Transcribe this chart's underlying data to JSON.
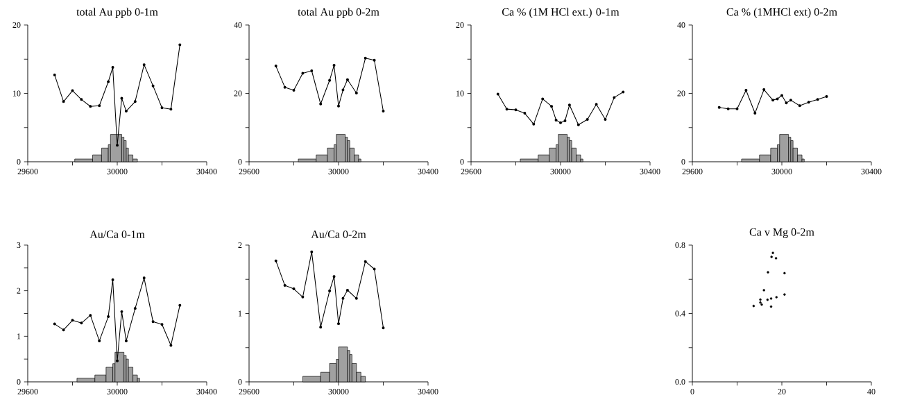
{
  "chart_data": [
    {
      "type": "line",
      "title": "total Au ppb 0-1m",
      "xlim": [
        29600,
        30400
      ],
      "xticks": [
        29600,
        {
          "value": 29800,
          "label": null
        },
        30000,
        {
          "value": 30200,
          "label": null
        },
        30400
      ],
      "ylim": [
        0,
        20
      ],
      "yticks": [
        0,
        {
          "value": 5,
          "label": null
        },
        10,
        {
          "value": 15,
          "label": null
        },
        20
      ],
      "marker": "circle",
      "series": [
        {
          "type": "histogram",
          "color": "#a0a0a0",
          "bins": [
            29810,
            29890,
            29930,
            29960,
            29970,
            30020,
            30030,
            30040,
            30050,
            30070,
            30090
          ],
          "values": [
            0.4,
            1,
            2,
            2.5,
            4,
            3.6,
            3.1,
            2,
            1,
            0.4
          ]
        },
        {
          "type": "line",
          "color": "#000000",
          "x": [
            29720,
            29760,
            29800,
            29840,
            29880,
            29920,
            29960,
            29980,
            30000,
            30020,
            30040,
            30080,
            30120,
            30160,
            30200,
            30240,
            30280
          ],
          "values": [
            12.7,
            8.8,
            10.4,
            9.1,
            8.1,
            8.2,
            11.7,
            13.8,
            2.4,
            9.3,
            7.4,
            8.8,
            14.2,
            11.1,
            7.9,
            7.7,
            17.1
          ]
        }
      ]
    },
    {
      "type": "line",
      "title": "total Au ppb 0-2m",
      "xlim": [
        29600,
        30400
      ],
      "xticks": [
        29600,
        {
          "value": 29800,
          "label": null
        },
        30000,
        {
          "value": 30200,
          "label": null
        },
        30400
      ],
      "ylim": [
        0,
        40
      ],
      "yticks": [
        0,
        {
          "value": 10,
          "label": null
        },
        20,
        {
          "value": 30,
          "label": null
        },
        40
      ],
      "marker": "circle",
      "series": [
        {
          "type": "histogram",
          "color": "#a0a0a0",
          "bins": [
            29820,
            29900,
            29950,
            29980,
            29990,
            30030,
            30040,
            30050,
            30070,
            30090,
            30100
          ],
          "values": [
            0.8,
            2,
            4,
            5,
            8,
            7.2,
            6.2,
            4,
            2,
            0.8
          ]
        },
        {
          "type": "line",
          "color": "#000000",
          "x": [
            29720,
            29760,
            29800,
            29840,
            29880,
            29920,
            29960,
            29980,
            30000,
            30020,
            30040,
            30080,
            30120,
            30160,
            30200
          ],
          "values": [
            28.0,
            21.8,
            20.9,
            25.9,
            26.6,
            16.9,
            23.8,
            28.2,
            16.3,
            21.0,
            24.0,
            20.1,
            30.3,
            29.7,
            14.8
          ]
        }
      ]
    },
    {
      "type": "line",
      "title": "Ca % (1M HCl ext.) 0-1m",
      "xlim": [
        29600,
        30400
      ],
      "xticks": [
        29600,
        {
          "value": 29800,
          "label": null
        },
        30000,
        {
          "value": 30200,
          "label": null
        },
        30400
      ],
      "ylim": [
        0,
        20
      ],
      "yticks": [
        0,
        {
          "value": 5,
          "label": null
        },
        10,
        {
          "value": 15,
          "label": null
        },
        20
      ],
      "marker": "circle",
      "series": [
        {
          "type": "histogram",
          "color": "#a0a0a0",
          "bins": [
            29820,
            29900,
            29950,
            29980,
            29990,
            30030,
            30040,
            30050,
            30070,
            30090,
            30100
          ],
          "values": [
            0.4,
            1,
            2,
            2.5,
            4,
            3.6,
            3.1,
            2,
            1,
            0.4
          ]
        },
        {
          "type": "line",
          "color": "#000000",
          "x": [
            29720,
            29760,
            29800,
            29840,
            29880,
            29920,
            29960,
            29980,
            30000,
            30020,
            30040,
            30080,
            30120,
            30160,
            30200,
            30240,
            30280
          ],
          "values": [
            9.9,
            7.7,
            7.6,
            7.1,
            5.5,
            9.2,
            8.1,
            6.1,
            5.7,
            6.0,
            8.3,
            5.4,
            6.2,
            8.4,
            6.2,
            9.4,
            10.2
          ]
        }
      ]
    },
    {
      "type": "line",
      "title": "Ca % (1MHCl ext) 0-2m",
      "xlim": [
        29600,
        30400
      ],
      "xticks": [
        29600,
        {
          "value": 29800,
          "label": null
        },
        30000,
        {
          "value": 30200,
          "label": null
        },
        30400
      ],
      "ylim": [
        0,
        40
      ],
      "yticks": [
        0,
        {
          "value": 10,
          "label": null
        },
        20,
        {
          "value": 30,
          "label": null
        },
        40
      ],
      "marker": "circle",
      "series": [
        {
          "type": "histogram",
          "color": "#a0a0a0",
          "bins": [
            29820,
            29900,
            29950,
            29980,
            29990,
            30030,
            30040,
            30050,
            30070,
            30090,
            30100
          ],
          "values": [
            0.8,
            2,
            4,
            5,
            8,
            7.2,
            6.2,
            4,
            2,
            0.8
          ]
        },
        {
          "type": "line",
          "color": "#000000",
          "x": [
            29720,
            29760,
            29800,
            29840,
            29880,
            29920,
            29960,
            29980,
            30000,
            30020,
            30040,
            30080,
            30120,
            30160,
            30200
          ],
          "values": [
            15.9,
            15.5,
            15.5,
            20.9,
            14.2,
            21.1,
            18.0,
            18.4,
            19.4,
            17.2,
            18.0,
            16.4,
            17.4,
            18.2,
            19.1
          ]
        }
      ]
    },
    {
      "type": "line",
      "title": "Au/Ca 0-1m",
      "xlim": [
        29600,
        30400
      ],
      "xticks": [
        29600,
        {
          "value": 29800,
          "label": null
        },
        30000,
        {
          "value": 30200,
          "label": null
        },
        30400
      ],
      "ylim": [
        0,
        3
      ],
      "yticks": [
        0,
        {
          "value": 0.5,
          "label": null
        },
        1,
        {
          "value": 1.5,
          "label": null
        },
        2,
        {
          "value": 2.5,
          "label": null
        },
        3
      ],
      "marker": "circle",
      "series": [
        {
          "type": "histogram",
          "color": "#a0a0a0",
          "bins": [
            29820,
            29900,
            29950,
            29980,
            29990,
            30030,
            30040,
            30050,
            30070,
            30090,
            30100
          ],
          "values": [
            0.08,
            0.15,
            0.32,
            0.4,
            0.65,
            0.58,
            0.5,
            0.32,
            0.15,
            0.08
          ]
        },
        {
          "type": "line",
          "color": "#000000",
          "x": [
            29720,
            29760,
            29800,
            29840,
            29880,
            29920,
            29960,
            29980,
            30000,
            30020,
            30040,
            30080,
            30120,
            30160,
            30200,
            30240,
            30280
          ],
          "values": [
            1.27,
            1.14,
            1.35,
            1.29,
            1.46,
            0.9,
            1.43,
            2.24,
            0.46,
            1.54,
            0.9,
            1.61,
            2.28,
            1.32,
            1.26,
            0.8,
            1.68
          ]
        }
      ]
    },
    {
      "type": "line",
      "title": "Au/Ca 0-2m",
      "xlim": [
        29600,
        30400
      ],
      "xticks": [
        29600,
        {
          "value": 29800,
          "label": null
        },
        30000,
        {
          "value": 30200,
          "label": null
        },
        30400
      ],
      "ylim": [
        0,
        2
      ],
      "yticks": [
        0,
        {
          "value": 0.5,
          "label": null
        },
        1,
        {
          "value": 1.5,
          "label": null
        },
        2
      ],
      "marker": "circle",
      "series": [
        {
          "type": "histogram",
          "color": "#a0a0a0",
          "bins": [
            29840,
            29920,
            29960,
            29990,
            30000,
            30040,
            30050,
            30060,
            30080,
            30100,
            30120
          ],
          "values": [
            0.08,
            0.14,
            0.27,
            0.33,
            0.51,
            0.46,
            0.4,
            0.27,
            0.14,
            0.08
          ]
        },
        {
          "type": "line",
          "color": "#000000",
          "x": [
            29720,
            29760,
            29800,
            29840,
            29880,
            29920,
            29960,
            29980,
            30000,
            30020,
            30040,
            30080,
            30120,
            30160,
            30200
          ],
          "values": [
            1.77,
            1.41,
            1.36,
            1.24,
            1.9,
            0.8,
            1.33,
            1.54,
            0.85,
            1.22,
            1.34,
            1.22,
            1.76,
            1.65,
            0.79
          ]
        }
      ]
    },
    {
      "type": "scatter",
      "title": "Ca v Mg 0-2m",
      "xlim": [
        0,
        40
      ],
      "xticks": [
        0,
        {
          "value": 10,
          "label": null
        },
        20,
        {
          "value": 30,
          "label": null
        },
        40
      ],
      "ylim": [
        0,
        0.8
      ],
      "yticks": [
        {
          "value": 0,
          "label": "0.0"
        },
        {
          "value": 0.2,
          "label": null
        },
        0.4,
        {
          "value": 0.6,
          "label": null
        },
        0.8
      ],
      "marker": "circle",
      "color": "#000000",
      "x": [
        13.7,
        15.2,
        15.2,
        15.5,
        16.0,
        16.8,
        16.9,
        17.6,
        17.6,
        17.7,
        18.0,
        18.7,
        18.8,
        20.6,
        20.6
      ],
      "values": [
        0.444,
        0.481,
        0.464,
        0.452,
        0.536,
        0.48,
        0.641,
        0.487,
        0.44,
        0.731,
        0.754,
        0.723,
        0.495,
        0.636,
        0.511
      ]
    }
  ]
}
